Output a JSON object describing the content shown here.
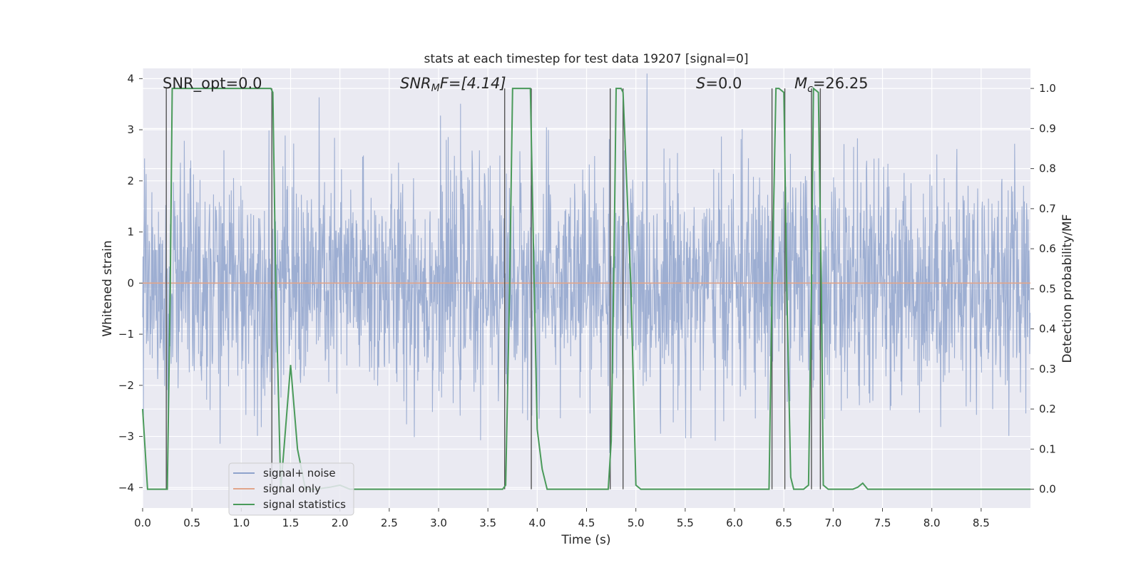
{
  "chart_data": {
    "type": "line",
    "title": "stats at each timestep for test data 19207 [signal=0]",
    "xlabel": "Time (s)",
    "ylabel_left": "Whitened strain",
    "ylabel_right": "Detection probability/MF",
    "xlim": [
      0.0,
      9.0
    ],
    "ylim_left": [
      -4.4,
      4.2
    ],
    "ylim_right": [
      -0.047,
      1.05
    ],
    "grid": true,
    "legend_position": "lower-left",
    "x_ticks": [
      "0.0",
      "0.5",
      "1.0",
      "1.5",
      "2.0",
      "2.5",
      "3.0",
      "3.5",
      "4.0",
      "4.5",
      "5.0",
      "5.5",
      "6.0",
      "6.5",
      "7.0",
      "7.5",
      "8.0",
      "8.5"
    ],
    "y_left_ticks": [
      "4",
      "3",
      "2",
      "1",
      "0",
      "−1",
      "−2",
      "−3",
      "−4"
    ],
    "y_right_ticks": [
      "1.0",
      "0.9",
      "0.8",
      "0.7",
      "0.6",
      "0.5",
      "0.4",
      "0.3",
      "0.2",
      "0.1",
      "0.0"
    ],
    "annotations": {
      "snr_opt": "SNR_opt=0.0",
      "snr_mf_base": "SNR",
      "snr_mf_sub": "M",
      "snr_mf_rest": "F=[4.14]",
      "s_label": "S",
      "s_value": "=0.0",
      "mc_base": "M",
      "mc_sub": "c",
      "mc_value": "=26.25"
    },
    "series": [
      {
        "name": "signal+ noise",
        "color": "#8fa3cc",
        "description_axis": "left",
        "amplitude_std": 1.1,
        "sample_rate_hz": 256,
        "duration_s": 9.0
      },
      {
        "name": "signal only",
        "color": "#e1a58b",
        "description_axis": "left",
        "x": [
          0.0,
          9.0
        ],
        "y": [
          0.0,
          0.0
        ]
      },
      {
        "name": "signal statistics",
        "color": "#4a9a5a",
        "description_axis": "right",
        "x": [
          0.0,
          0.05,
          0.25,
          0.28,
          0.3,
          1.3,
          1.32,
          1.35,
          1.4,
          1.5,
          1.57,
          1.65,
          1.75,
          1.9,
          2.0,
          2.1,
          3.65,
          3.68,
          3.72,
          3.75,
          3.93,
          3.97,
          4.0,
          4.05,
          4.1,
          4.65,
          4.72,
          4.75,
          4.78,
          4.8,
          4.85,
          4.87,
          4.95,
          5.0,
          5.05,
          6.3,
          6.35,
          6.38,
          6.42,
          6.45,
          6.5,
          6.53,
          6.57,
          6.6,
          6.65,
          6.7,
          6.75,
          6.78,
          6.8,
          6.85,
          6.88,
          6.9,
          6.95,
          7.0,
          7.1,
          7.2,
          7.25,
          7.3,
          7.35,
          7.4,
          9.0
        ],
        "y": [
          0.2,
          0.0,
          0.0,
          0.5,
          1.0,
          1.0,
          0.99,
          0.5,
          0.0,
          0.31,
          0.1,
          0.0,
          0.0,
          0.005,
          0.01,
          0.0,
          0.0,
          0.01,
          0.5,
          1.0,
          1.0,
          0.5,
          0.15,
          0.05,
          0.0,
          0.0,
          0.0,
          0.12,
          0.6,
          1.0,
          1.0,
          0.99,
          0.5,
          0.01,
          0.0,
          0.0,
          0.0,
          0.5,
          1.0,
          1.0,
          0.99,
          0.5,
          0.03,
          0.0,
          0.0,
          0.0,
          0.01,
          0.5,
          1.0,
          0.99,
          0.5,
          0.01,
          0.0,
          0.0,
          0.0,
          0.0,
          0.005,
          0.015,
          0.0,
          0.0,
          0.0
        ]
      }
    ],
    "vertical_lines_x": [
      0.24,
      1.31,
      3.67,
      3.94,
      4.74,
      4.87,
      6.38,
      6.51,
      6.78,
      6.87
    ]
  }
}
